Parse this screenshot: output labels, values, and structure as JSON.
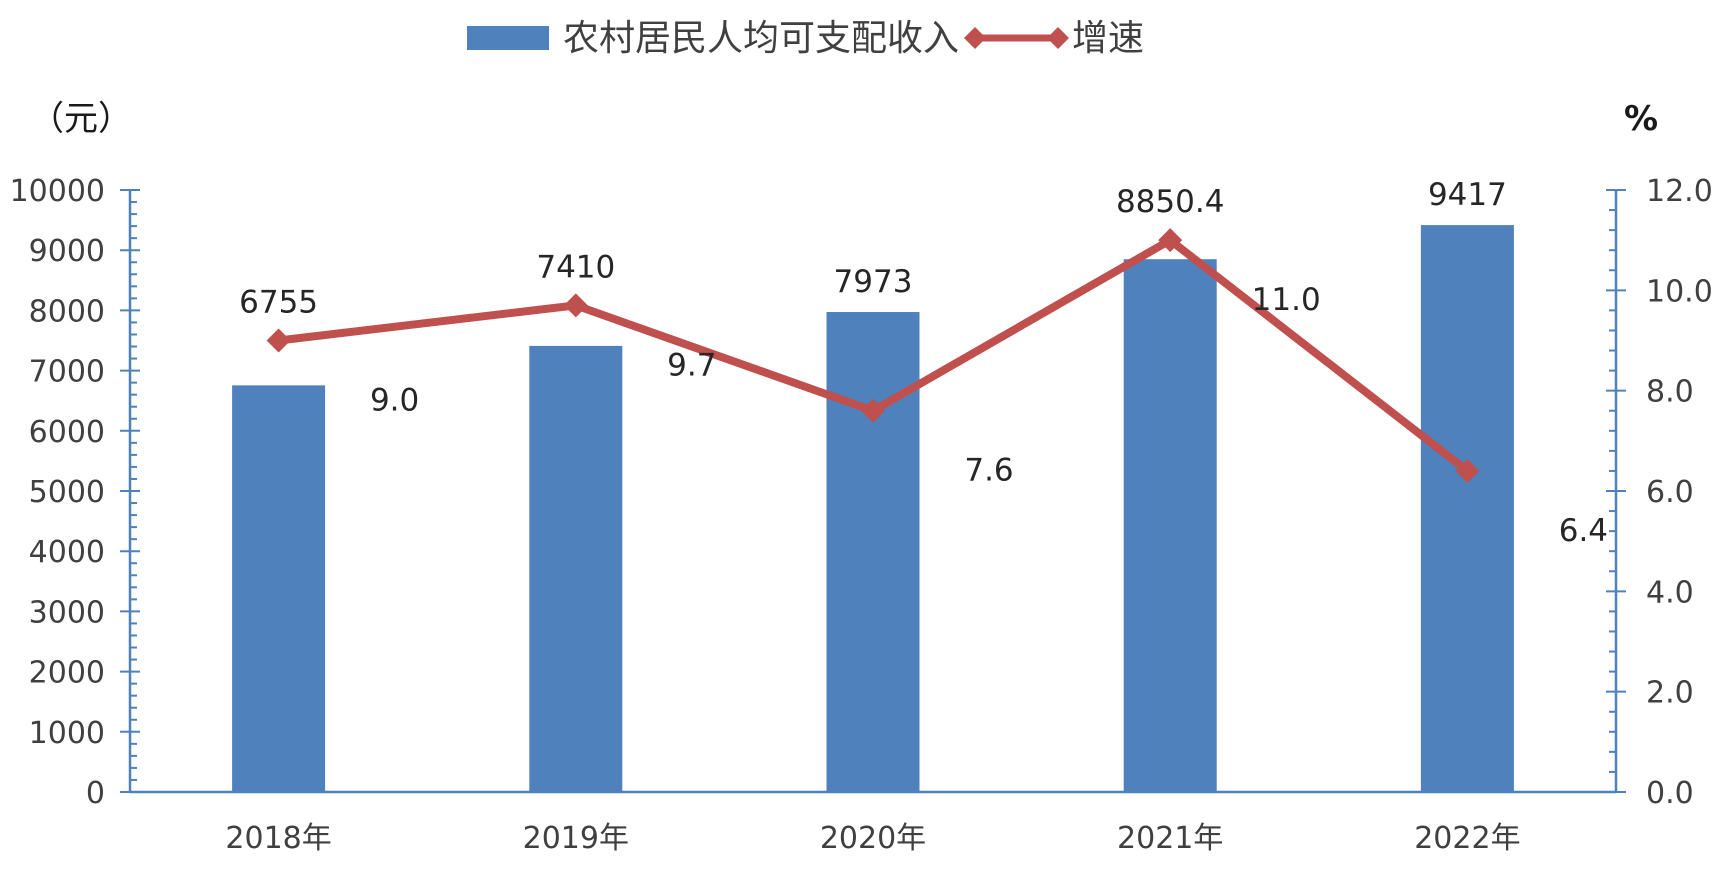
{
  "chart_data": {
    "type": "bar",
    "categories": [
      "2018年",
      "2019年",
      "2020年",
      "2021年",
      "2022年"
    ],
    "series": [
      {
        "name": "农村居民人均可支配收入",
        "type": "bar",
        "axis": "left",
        "values": [
          6755,
          7410,
          7973,
          8850.4,
          9417
        ],
        "labels": [
          "6755",
          "7410",
          "7973",
          "8850.4",
          "9417"
        ],
        "color": "#4F81BD"
      },
      {
        "name": "增速",
        "type": "line",
        "axis": "right",
        "values": [
          9.0,
          9.7,
          7.6,
          11.0,
          6.4
        ],
        "labels": [
          "9.0",
          "9.7",
          "7.6",
          "11.0",
          "6.4"
        ],
        "color": "#C0504D",
        "marker": "diamond"
      }
    ],
    "ylabel_left": "（元）",
    "ylabel_right": "%",
    "ylim_left": [
      0,
      10000
    ],
    "yticks_left": [
      "0",
      "1000",
      "2000",
      "3000",
      "4000",
      "5000",
      "6000",
      "7000",
      "8000",
      "9000",
      "10000"
    ],
    "ylim_right": [
      0,
      12
    ],
    "yticks_right": [
      "0.0",
      "2.0",
      "4.0",
      "6.0",
      "8.0",
      "10.0",
      "12.0"
    ],
    "grid": false,
    "legend_position": "top-center",
    "axis_color": "#4F81BD"
  }
}
